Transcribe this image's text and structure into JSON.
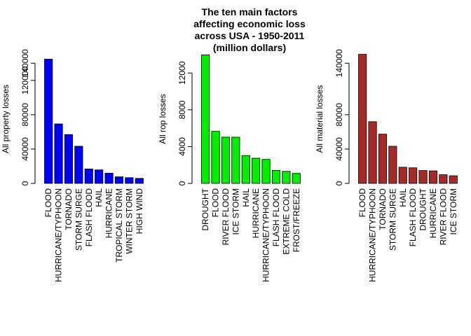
{
  "title_lines": [
    "The ten main factors",
    "affecting economic loss",
    "across USA - 1950-2011",
    "(million dollars)"
  ],
  "chart_data": [
    {
      "type": "bar",
      "ylabel": "All property losses",
      "color": "#0000ff",
      "ylim": [
        0,
        150000
      ],
      "yticks": [
        0,
        40000,
        80000,
        120000,
        140000
      ],
      "categories": [
        "FLOOD",
        "HURRICANE/TYPHOON",
        "TORNADO",
        "STORM SURGE",
        "FLASH FLOOD",
        "HAIL",
        "HURRICANE",
        "TROPICAL STORM",
        "WINTER STORM",
        "HIGH WIND"
      ],
      "values": [
        144700,
        69300,
        56900,
        43300,
        16800,
        15700,
        11900,
        7700,
        6700,
        5900
      ]
    },
    {
      "type": "bar",
      "ylabel": "All rop losses",
      "color": "#00ee00",
      "ylim": [
        0,
        14000
      ],
      "yticks": [
        0,
        4000,
        8000,
        12000
      ],
      "categories": [
        "DROUGHT",
        "FLOOD",
        "RIVER FLOOD",
        "ICE STORM",
        "HAIL",
        "HURRICANE",
        "HURRICANE/TYPHOON",
        "FLASH FLOOD",
        "EXTREME COLD",
        "FROST/FREEZE"
      ],
      "values": [
        13970,
        5660,
        5030,
        5020,
        3030,
        2740,
        2610,
        1420,
        1310,
        1090
      ]
    },
    {
      "type": "bar",
      "ylabel": "All material losses",
      "color": "#a52a2a",
      "ylim": [
        0,
        150000
      ],
      "yticks": [
        0,
        40000,
        80000,
        140000
      ],
      "categories": [
        "FLOOD",
        "HURRICANE/TYPHOON",
        "TORNADO",
        "STORM SURGE",
        "HAIL",
        "FLASH FLOOD",
        "DROUGHT",
        "HURRICANE",
        "RIVER FLOOD",
        "ICE STORM"
      ],
      "values": [
        150300,
        71900,
        57400,
        43300,
        18800,
        18200,
        15000,
        14600,
        10100,
        8900
      ]
    }
  ]
}
